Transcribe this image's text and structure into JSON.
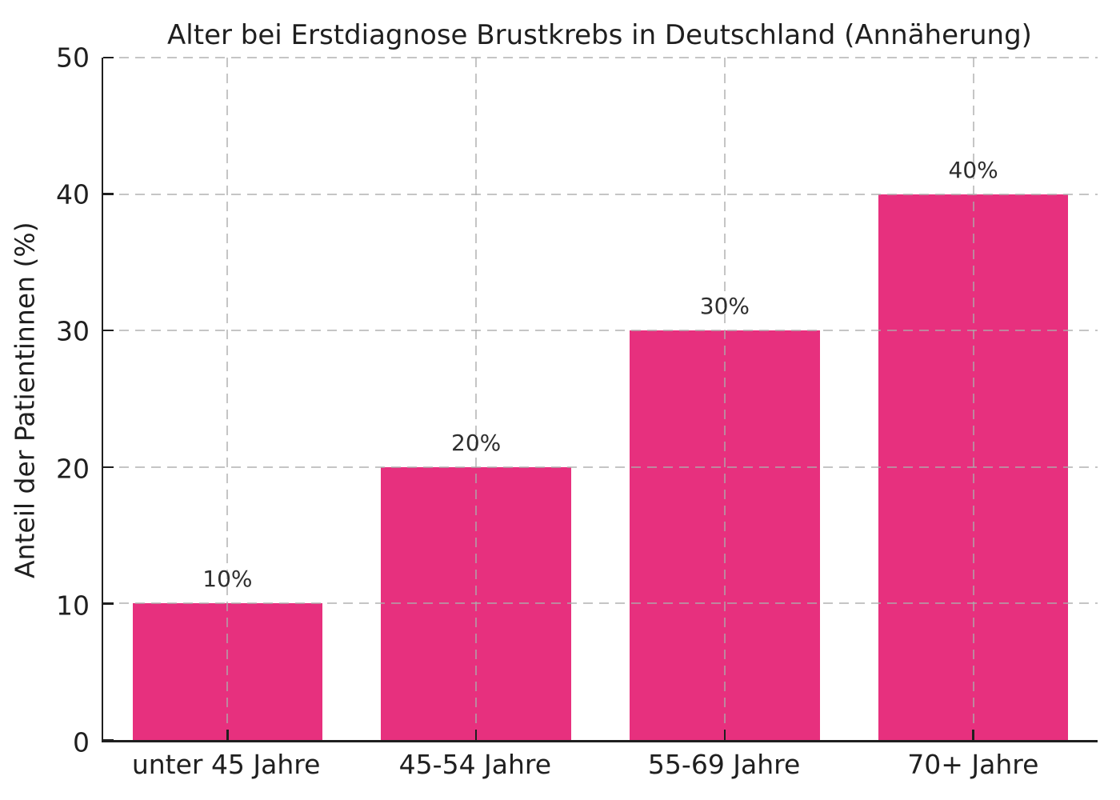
{
  "chart_data": {
    "type": "bar",
    "title": "Alter bei Erstdiagnose Brustkrebs in Deutschland (Annäherung)",
    "xlabel": "",
    "ylabel": "Anteil der Patientinnen (%)",
    "categories": [
      "unter 45 Jahre",
      "45-54 Jahre",
      "55-69 Jahre",
      "70+ Jahre"
    ],
    "values": [
      10,
      20,
      30,
      40
    ],
    "bar_labels": [
      "10%",
      "20%",
      "30%",
      "40%"
    ],
    "ylim": [
      0,
      50
    ],
    "yticks": [
      0,
      10,
      20,
      30,
      40,
      50
    ],
    "legend": "none",
    "grid": {
      "horizontal": true,
      "vertical": true,
      "style": "dashed",
      "drawn_above_bars": true
    },
    "colors": {
      "bar": "#e7307e",
      "axis": "#1f1f1f",
      "text": "#1f1f1f",
      "value_label": "#2e2e2e",
      "grid": "rgba(172,172,172,0.7)",
      "background": "#ffffff"
    }
  }
}
